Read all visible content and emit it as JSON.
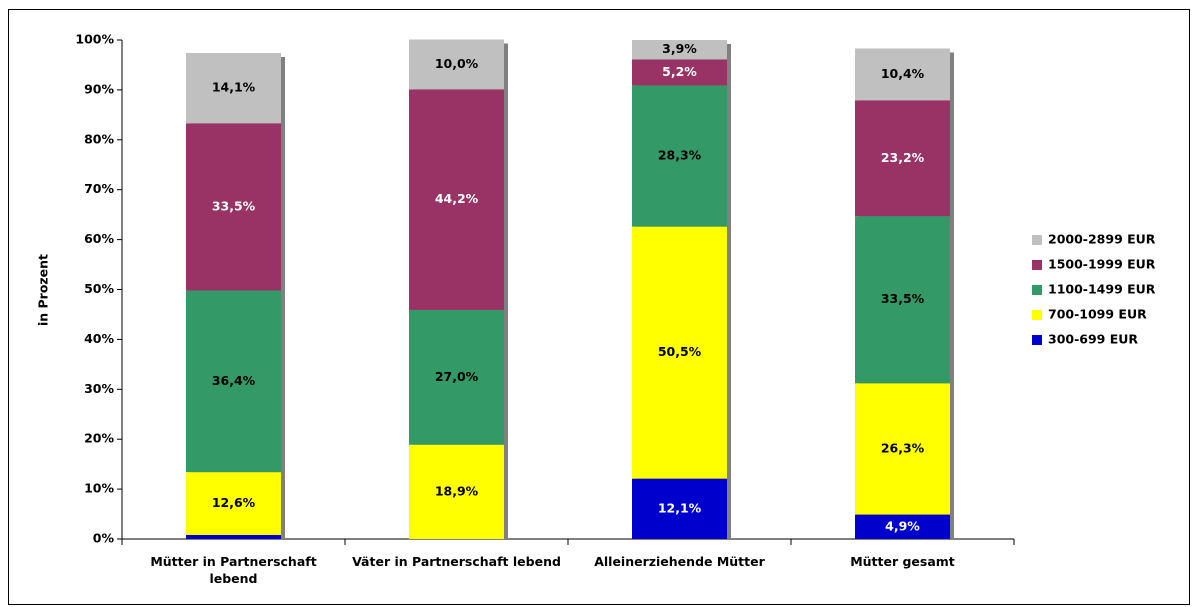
{
  "chart_data": {
    "type": "stacked_bar",
    "y_label": "in Prozent",
    "categories": [
      "Mütter in Partnerschaft lebend",
      "Väter in Partnerschaft lebend",
      "Alleinerziehende Mütter",
      "Mütter gesamt"
    ],
    "series": [
      {
        "name": "300-699 EUR",
        "color": "#0000cc",
        "label_color": "#ffffff",
        "values": [
          0.8,
          null,
          12.1,
          4.9
        ],
        "value_labels": [
          null,
          null,
          "12,1%",
          "4,9%"
        ]
      },
      {
        "name": "700-1099 EUR",
        "color": "#ffff00",
        "label_color": "#000000",
        "values": [
          12.6,
          18.9,
          50.5,
          26.3
        ],
        "value_labels": [
          "12,6%",
          "18,9%",
          "50,5%",
          "26,3%"
        ]
      },
      {
        "name": "1100-1499 EUR",
        "color": "#339966",
        "label_color": "#000000",
        "values": [
          36.4,
          27.0,
          28.3,
          33.5
        ],
        "value_labels": [
          "36,4%",
          "27,0%",
          "28,3%",
          "33,5%"
        ]
      },
      {
        "name": "1500-1999 EUR",
        "color": "#993366",
        "label_color": "#ffffff",
        "values": [
          33.5,
          44.2,
          5.2,
          23.2
        ],
        "value_labels": [
          "33,5%",
          "44,2%",
          "5,2%",
          "23,2%"
        ]
      },
      {
        "name": "2000-2899 EUR",
        "color": "#c0c0c0",
        "label_color": "#000000",
        "values": [
          14.1,
          10.0,
          3.9,
          10.4
        ],
        "value_labels": [
          "14,1%",
          "10,0%",
          "3,9%",
          "10,4%"
        ]
      }
    ],
    "ylim": [
      0,
      100
    ],
    "yticks": [
      {
        "value": 0,
        "label": "0%"
      },
      {
        "value": 10,
        "label": "10%"
      },
      {
        "value": 20,
        "label": "20%"
      },
      {
        "value": 30,
        "label": "30%"
      },
      {
        "value": 40,
        "label": "40%"
      },
      {
        "value": 50,
        "label": "50%"
      },
      {
        "value": 60,
        "label": "60%"
      },
      {
        "value": 70,
        "label": "70%"
      },
      {
        "value": 80,
        "label": "80%"
      },
      {
        "value": 90,
        "label": "90%"
      },
      {
        "value": 100,
        "label": "100%"
      }
    ],
    "legend": "right"
  }
}
